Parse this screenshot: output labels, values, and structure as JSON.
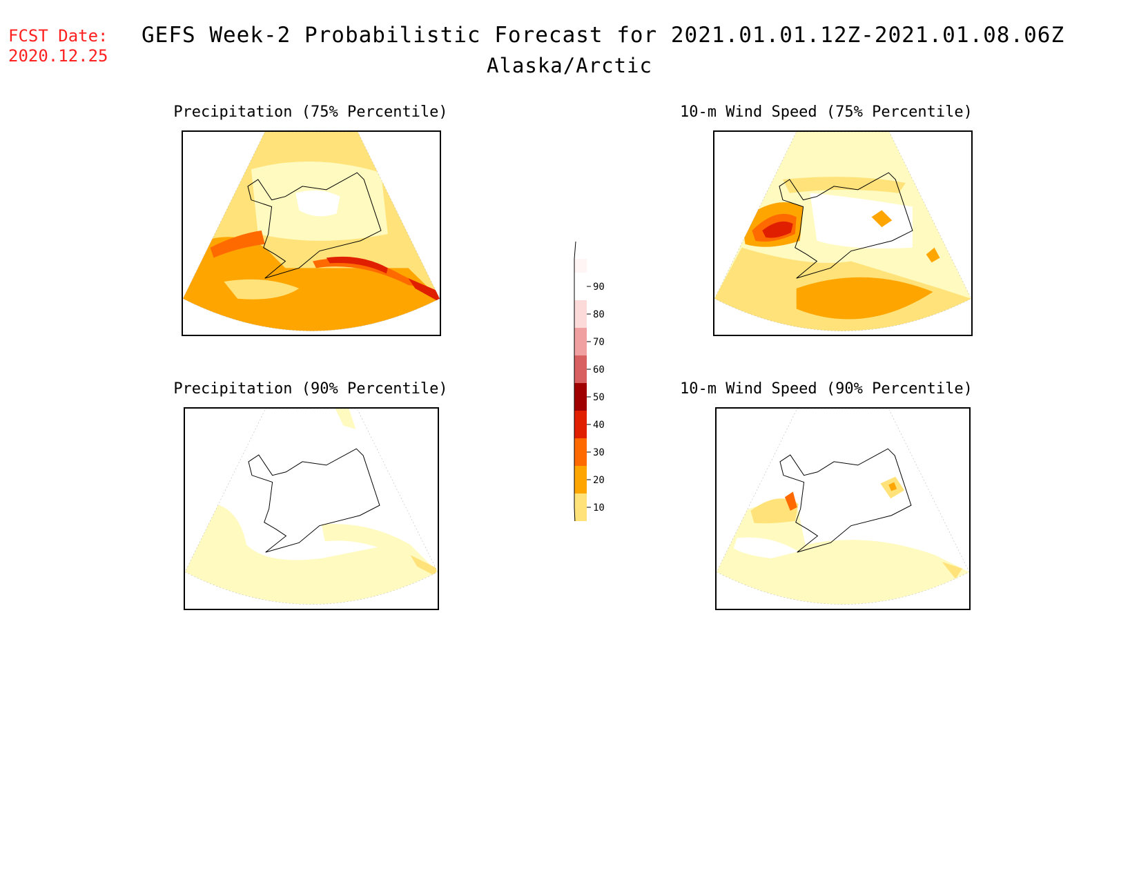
{
  "header": {
    "fcst_date_label": "FCST Date:",
    "fcst_date_value": "2020.12.25",
    "title": "GEFS Week-2 Probabilistic Forecast for 2021.01.01.12Z-2021.01.08.06Z",
    "subtitle": "Alaska/Arctic"
  },
  "panels": [
    {
      "title": "Precipitation (75% Percentile)",
      "field": "precip-75"
    },
    {
      "title": "10-m Wind Speed (75% Percentile)",
      "field": "wind-75"
    },
    {
      "title": "Precipitation (90% Percentile)",
      "field": "precip-90"
    },
    {
      "title": "10-m Wind Speed (90% Percentile)",
      "field": "wind-90"
    }
  ],
  "colorbar": {
    "levels": [
      10,
      20,
      30,
      40,
      50,
      60,
      70,
      80,
      90
    ],
    "labels": [
      "10",
      "20",
      "30",
      "40",
      "50",
      "60",
      "70",
      "80",
      "90"
    ],
    "colors": [
      "#fffac0",
      "#ffe37a",
      "#ffa500",
      "#ff6a00",
      "#e01e00",
      "#a00000",
      "#d86060",
      "#f0a0a0",
      "#fcdada",
      "#fff5f5"
    ]
  }
}
